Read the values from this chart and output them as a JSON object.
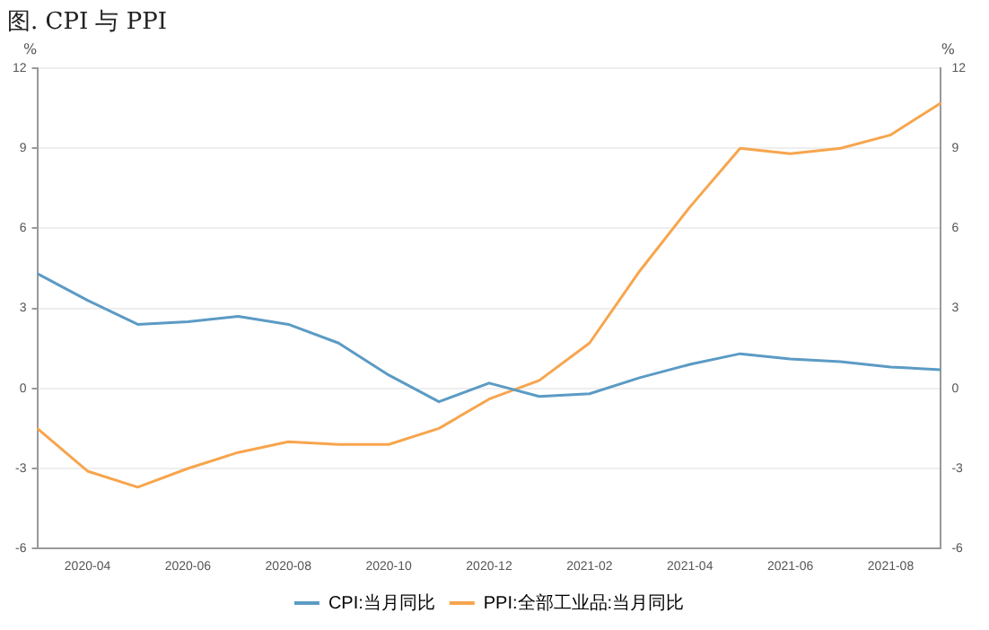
{
  "chart_data": {
    "type": "line",
    "title": "图. CPI 与 PPI",
    "categories": [
      null,
      "2020-04",
      null,
      "2020-06",
      null,
      "2020-08",
      null,
      "2020-10",
      null,
      "2020-12",
      null,
      "2021-02",
      null,
      "2021-04",
      null,
      "2021-06",
      null,
      "2021-08",
      null
    ],
    "series": [
      {
        "name": "CPI:当月同比",
        "color": "#5b9bc4",
        "values": [
          4.3,
          3.3,
          2.4,
          2.5,
          2.7,
          2.4,
          1.7,
          0.5,
          -0.5,
          0.2,
          -0.3,
          -0.2,
          0.4,
          0.9,
          1.3,
          1.1,
          1.0,
          0.8,
          0.7
        ]
      },
      {
        "name": "PPI:全部工业品:当月同比",
        "color": "#f7a54d",
        "values": [
          -1.5,
          -3.1,
          -3.7,
          -3.0,
          -2.4,
          -2.0,
          -2.1,
          -2.1,
          -1.5,
          -0.4,
          0.3,
          1.7,
          4.4,
          6.8,
          9.0,
          8.8,
          9.0,
          9.5,
          10.7
        ]
      }
    ],
    "ylabel": "%",
    "y2label": "%",
    "ylim": [
      -6,
      12
    ],
    "yticks": [
      -6,
      -3,
      0,
      3,
      6,
      9,
      12
    ],
    "y2lim": [
      -6,
      12
    ],
    "y2ticks": [
      -6,
      -3,
      0,
      3,
      6,
      9,
      12
    ],
    "grid": "y",
    "legend": "bottom",
    "marker": "none",
    "line_style": "solid"
  }
}
